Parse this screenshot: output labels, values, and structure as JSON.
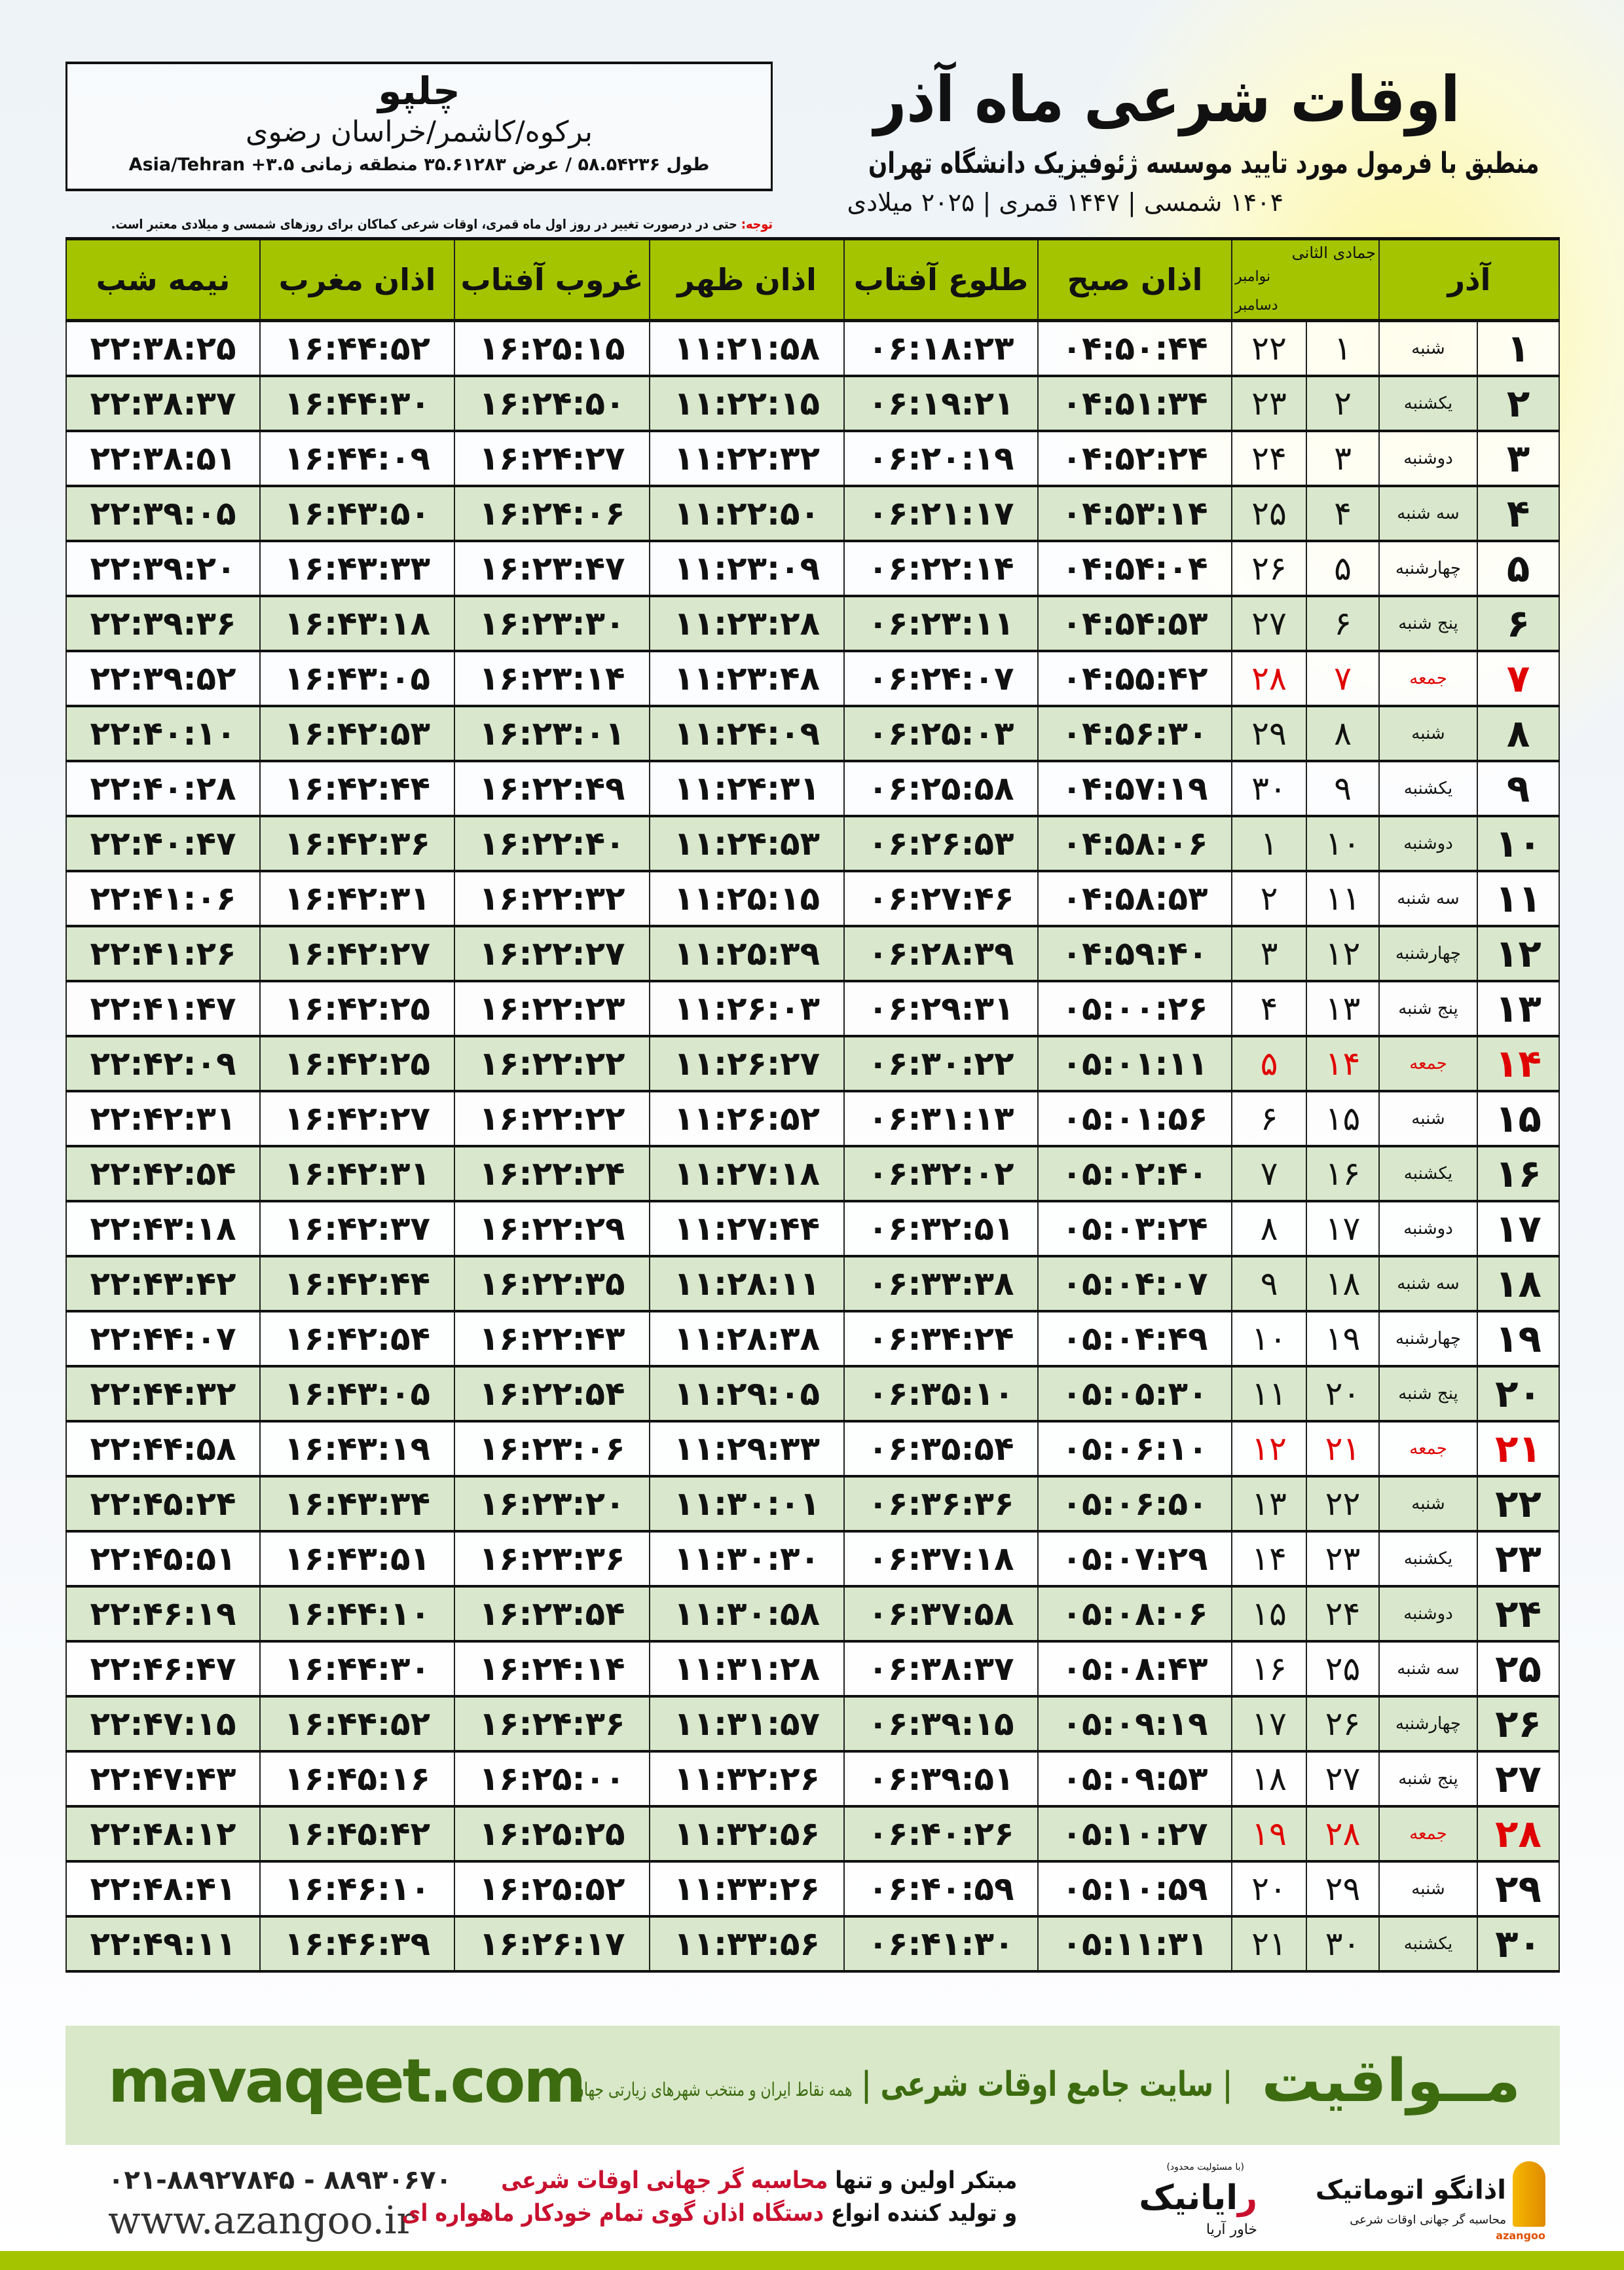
{
  "header": {
    "title": "اوقات شرعی ماه آذر",
    "subtitle": "منطبق با فرمول مورد تایید موسسه ژئوفیزیک دانشگاه تهران",
    "dates": "۱۴۰۴ شمسی | ۱۴۴۷ قمری | ۲۰۲۵ میلادی"
  },
  "location": {
    "city": "چلپو",
    "region": "برکوه/کاشمر/خراسان رضوی",
    "coords": "طول ۵۸.۵۴۲۳۶ / عرض ۳۵.۶۱۲۸۳ منطقه زمانی ۳.۵+ Asia/Tehran"
  },
  "note": {
    "label": "توجه:",
    "text": " حتی در درصورت تغییر در روز اول ماه قمری، اوقات شرعی کماکان برای روزهای شمسی و میلادی معتبر است."
  },
  "table": {
    "headers": {
      "month": "آذر",
      "hijri_month": "جمادی الثانی",
      "greg_month_1": "نوامبر",
      "greg_month_2": "دسامبر",
      "fajr": "اذان صبح",
      "sunrise": "طلوع آفتاب",
      "dhuhr": "اذان ظهر",
      "sunset": "غروب آفتاب",
      "maghrib": "اذان مغرب",
      "midnight": "نیمه شب"
    },
    "holiday_color": "#e00000",
    "header_color": "#a4c400",
    "alt_row_color": "#d9e8cc",
    "rows": [
      {
        "day": "۱",
        "weekday": "شنبه",
        "hijri": "۱",
        "greg": "۲۲",
        "times": [
          "۰۴:۵۰:۴۴",
          "۰۶:۱۸:۲۳",
          "۱۱:۲۱:۵۸",
          "۱۶:۲۵:۱۵",
          "۱۶:۴۴:۵۲",
          "۲۲:۳۸:۲۵"
        ],
        "holiday": false
      },
      {
        "day": "۲",
        "weekday": "یکشنبه",
        "hijri": "۲",
        "greg": "۲۳",
        "times": [
          "۰۴:۵۱:۳۴",
          "۰۶:۱۹:۲۱",
          "۱۱:۲۲:۱۵",
          "۱۶:۲۴:۵۰",
          "۱۶:۴۴:۳۰",
          "۲۲:۳۸:۳۷"
        ],
        "holiday": false
      },
      {
        "day": "۳",
        "weekday": "دوشنبه",
        "hijri": "۳",
        "greg": "۲۴",
        "times": [
          "۰۴:۵۲:۲۴",
          "۰۶:۲۰:۱۹",
          "۱۱:۲۲:۳۲",
          "۱۶:۲۴:۲۷",
          "۱۶:۴۴:۰۹",
          "۲۲:۳۸:۵۱"
        ],
        "holiday": false
      },
      {
        "day": "۴",
        "weekday": "سه شنبه",
        "hijri": "۴",
        "greg": "۲۵",
        "times": [
          "۰۴:۵۳:۱۴",
          "۰۶:۲۱:۱۷",
          "۱۱:۲۲:۵۰",
          "۱۶:۲۴:۰۶",
          "۱۶:۴۳:۵۰",
          "۲۲:۳۹:۰۵"
        ],
        "holiday": false
      },
      {
        "day": "۵",
        "weekday": "چهارشنبه",
        "hijri": "۵",
        "greg": "۲۶",
        "times": [
          "۰۴:۵۴:۰۴",
          "۰۶:۲۲:۱۴",
          "۱۱:۲۳:۰۹",
          "۱۶:۲۳:۴۷",
          "۱۶:۴۳:۳۳",
          "۲۲:۳۹:۲۰"
        ],
        "holiday": false
      },
      {
        "day": "۶",
        "weekday": "پنج شنبه",
        "hijri": "۶",
        "greg": "۲۷",
        "times": [
          "۰۴:۵۴:۵۳",
          "۰۶:۲۳:۱۱",
          "۱۱:۲۳:۲۸",
          "۱۶:۲۳:۳۰",
          "۱۶:۴۳:۱۸",
          "۲۲:۳۹:۳۶"
        ],
        "holiday": false
      },
      {
        "day": "۷",
        "weekday": "جمعه",
        "hijri": "۷",
        "greg": "۲۸",
        "times": [
          "۰۴:۵۵:۴۲",
          "۰۶:۲۴:۰۷",
          "۱۱:۲۳:۴۸",
          "۱۶:۲۳:۱۴",
          "۱۶:۴۳:۰۵",
          "۲۲:۳۹:۵۲"
        ],
        "holiday": true
      },
      {
        "day": "۸",
        "weekday": "شنبه",
        "hijri": "۸",
        "greg": "۲۹",
        "times": [
          "۰۴:۵۶:۳۰",
          "۰۶:۲۵:۰۳",
          "۱۱:۲۴:۰۹",
          "۱۶:۲۳:۰۱",
          "۱۶:۴۲:۵۳",
          "۲۲:۴۰:۱۰"
        ],
        "holiday": false
      },
      {
        "day": "۹",
        "weekday": "یکشنبه",
        "hijri": "۹",
        "greg": "۳۰",
        "times": [
          "۰۴:۵۷:۱۹",
          "۰۶:۲۵:۵۸",
          "۱۱:۲۴:۳۱",
          "۱۶:۲۲:۴۹",
          "۱۶:۴۲:۴۴",
          "۲۲:۴۰:۲۸"
        ],
        "holiday": false
      },
      {
        "day": "۱۰",
        "weekday": "دوشنبه",
        "hijri": "۱۰",
        "greg": "۱",
        "times": [
          "۰۴:۵۸:۰۶",
          "۰۶:۲۶:۵۳",
          "۱۱:۲۴:۵۳",
          "۱۶:۲۲:۴۰",
          "۱۶:۴۲:۳۶",
          "۲۲:۴۰:۴۷"
        ],
        "holiday": false
      },
      {
        "day": "۱۱",
        "weekday": "سه شنبه",
        "hijri": "۱۱",
        "greg": "۲",
        "times": [
          "۰۴:۵۸:۵۳",
          "۰۶:۲۷:۴۶",
          "۱۱:۲۵:۱۵",
          "۱۶:۲۲:۳۲",
          "۱۶:۴۲:۳۱",
          "۲۲:۴۱:۰۶"
        ],
        "holiday": false
      },
      {
        "day": "۱۲",
        "weekday": "چهارشنبه",
        "hijri": "۱۲",
        "greg": "۳",
        "times": [
          "۰۴:۵۹:۴۰",
          "۰۶:۲۸:۳۹",
          "۱۱:۲۵:۳۹",
          "۱۶:۲۲:۲۷",
          "۱۶:۴۲:۲۷",
          "۲۲:۴۱:۲۶"
        ],
        "holiday": false
      },
      {
        "day": "۱۳",
        "weekday": "پنج شنبه",
        "hijri": "۱۳",
        "greg": "۴",
        "times": [
          "۰۵:۰۰:۲۶",
          "۰۶:۲۹:۳۱",
          "۱۱:۲۶:۰۳",
          "۱۶:۲۲:۲۳",
          "۱۶:۴۲:۲۵",
          "۲۲:۴۱:۴۷"
        ],
        "holiday": false
      },
      {
        "day": "۱۴",
        "weekday": "جمعه",
        "hijri": "۱۴",
        "greg": "۵",
        "times": [
          "۰۵:۰۱:۱۱",
          "۰۶:۳۰:۲۲",
          "۱۱:۲۶:۲۷",
          "۱۶:۲۲:۲۲",
          "۱۶:۴۲:۲۵",
          "۲۲:۴۲:۰۹"
        ],
        "holiday": true
      },
      {
        "day": "۱۵",
        "weekday": "شنبه",
        "hijri": "۱۵",
        "greg": "۶",
        "times": [
          "۰۵:۰۱:۵۶",
          "۰۶:۳۱:۱۳",
          "۱۱:۲۶:۵۲",
          "۱۶:۲۲:۲۲",
          "۱۶:۴۲:۲۷",
          "۲۲:۴۲:۳۱"
        ],
        "holiday": false
      },
      {
        "day": "۱۶",
        "weekday": "یکشنبه",
        "hijri": "۱۶",
        "greg": "۷",
        "times": [
          "۰۵:۰۲:۴۰",
          "۰۶:۳۲:۰۲",
          "۱۱:۲۷:۱۸",
          "۱۶:۲۲:۲۴",
          "۱۶:۴۲:۳۱",
          "۲۲:۴۲:۵۴"
        ],
        "holiday": false
      },
      {
        "day": "۱۷",
        "weekday": "دوشنبه",
        "hijri": "۱۷",
        "greg": "۸",
        "times": [
          "۰۵:۰۳:۲۴",
          "۰۶:۳۲:۵۱",
          "۱۱:۲۷:۴۴",
          "۱۶:۲۲:۲۹",
          "۱۶:۴۲:۳۷",
          "۲۲:۴۳:۱۸"
        ],
        "holiday": false
      },
      {
        "day": "۱۸",
        "weekday": "سه شنبه",
        "hijri": "۱۸",
        "greg": "۹",
        "times": [
          "۰۵:۰۴:۰۷",
          "۰۶:۳۳:۳۸",
          "۱۱:۲۸:۱۱",
          "۱۶:۲۲:۳۵",
          "۱۶:۴۲:۴۴",
          "۲۲:۴۳:۴۲"
        ],
        "holiday": false
      },
      {
        "day": "۱۹",
        "weekday": "چهارشنبه",
        "hijri": "۱۹",
        "greg": "۱۰",
        "times": [
          "۰۵:۰۴:۴۹",
          "۰۶:۳۴:۲۴",
          "۱۱:۲۸:۳۸",
          "۱۶:۲۲:۴۳",
          "۱۶:۴۲:۵۴",
          "۲۲:۴۴:۰۷"
        ],
        "holiday": false
      },
      {
        "day": "۲۰",
        "weekday": "پنج شنبه",
        "hijri": "۲۰",
        "greg": "۱۱",
        "times": [
          "۰۵:۰۵:۳۰",
          "۰۶:۳۵:۱۰",
          "۱۱:۲۹:۰۵",
          "۱۶:۲۲:۵۴",
          "۱۶:۴۳:۰۵",
          "۲۲:۴۴:۳۲"
        ],
        "holiday": false
      },
      {
        "day": "۲۱",
        "weekday": "جمعه",
        "hijri": "۲۱",
        "greg": "۱۲",
        "times": [
          "۰۵:۰۶:۱۰",
          "۰۶:۳۵:۵۴",
          "۱۱:۲۹:۳۳",
          "۱۶:۲۳:۰۶",
          "۱۶:۴۳:۱۹",
          "۲۲:۴۴:۵۸"
        ],
        "holiday": true
      },
      {
        "day": "۲۲",
        "weekday": "شنبه",
        "hijri": "۲۲",
        "greg": "۱۳",
        "times": [
          "۰۵:۰۶:۵۰",
          "۰۶:۳۶:۳۶",
          "۱۱:۳۰:۰۱",
          "۱۶:۲۳:۲۰",
          "۱۶:۴۳:۳۴",
          "۲۲:۴۵:۲۴"
        ],
        "holiday": false
      },
      {
        "day": "۲۳",
        "weekday": "یکشنبه",
        "hijri": "۲۳",
        "greg": "۱۴",
        "times": [
          "۰۵:۰۷:۲۹",
          "۰۶:۳۷:۱۸",
          "۱۱:۳۰:۳۰",
          "۱۶:۲۳:۳۶",
          "۱۶:۴۳:۵۱",
          "۲۲:۴۵:۵۱"
        ],
        "holiday": false
      },
      {
        "day": "۲۴",
        "weekday": "دوشنبه",
        "hijri": "۲۴",
        "greg": "۱۵",
        "times": [
          "۰۵:۰۸:۰۶",
          "۰۶:۳۷:۵۸",
          "۱۱:۳۰:۵۸",
          "۱۶:۲۳:۵۴",
          "۱۶:۴۴:۱۰",
          "۲۲:۴۶:۱۹"
        ],
        "holiday": false
      },
      {
        "day": "۲۵",
        "weekday": "سه شنبه",
        "hijri": "۲۵",
        "greg": "۱۶",
        "times": [
          "۰۵:۰۸:۴۳",
          "۰۶:۳۸:۳۷",
          "۱۱:۳۱:۲۸",
          "۱۶:۲۴:۱۴",
          "۱۶:۴۴:۳۰",
          "۲۲:۴۶:۴۷"
        ],
        "holiday": false
      },
      {
        "day": "۲۶",
        "weekday": "چهارشنبه",
        "hijri": "۲۶",
        "greg": "۱۷",
        "times": [
          "۰۵:۰۹:۱۹",
          "۰۶:۳۹:۱۵",
          "۱۱:۳۱:۵۷",
          "۱۶:۲۴:۳۶",
          "۱۶:۴۴:۵۲",
          "۲۲:۴۷:۱۵"
        ],
        "holiday": false
      },
      {
        "day": "۲۷",
        "weekday": "پنج شنبه",
        "hijri": "۲۷",
        "greg": "۱۸",
        "times": [
          "۰۵:۰۹:۵۳",
          "۰۶:۳۹:۵۱",
          "۱۱:۳۲:۲۶",
          "۱۶:۲۵:۰۰",
          "۱۶:۴۵:۱۶",
          "۲۲:۴۷:۴۳"
        ],
        "holiday": false
      },
      {
        "day": "۲۸",
        "weekday": "جمعه",
        "hijri": "۲۸",
        "greg": "۱۹",
        "times": [
          "۰۵:۱۰:۲۷",
          "۰۶:۴۰:۲۶",
          "۱۱:۳۲:۵۶",
          "۱۶:۲۵:۲۵",
          "۱۶:۴۵:۴۲",
          "۲۲:۴۸:۱۲"
        ],
        "holiday": true
      },
      {
        "day": "۲۹",
        "weekday": "شنبه",
        "hijri": "۲۹",
        "greg": "۲۰",
        "times": [
          "۰۵:۱۰:۵۹",
          "۰۶:۴۰:۵۹",
          "۱۱:۳۳:۲۶",
          "۱۶:۲۵:۵۲",
          "۱۶:۴۶:۱۰",
          "۲۲:۴۸:۴۱"
        ],
        "holiday": false
      },
      {
        "day": "۳۰",
        "weekday": "یکشنبه",
        "hijri": "۳۰",
        "greg": "۲۱",
        "times": [
          "۰۵:۱۱:۳۱",
          "۰۶:۴۱:۳۰",
          "۱۱:۳۳:۵۶",
          "۱۶:۲۶:۱۷",
          "۱۶:۴۶:۳۹",
          "۲۲:۴۹:۱۱"
        ],
        "holiday": false
      }
    ]
  },
  "footer": {
    "mavaqeet_logo": "مــواقیت",
    "tagline": "| سایت جامع اوقات شرعی |",
    "tagline_small": "همه نقاط ایران و منتخب شهرهای زیارتی جهان",
    "site": "mavaqeet.com",
    "phone": "۰۲۱-۸۸۹۲۷۸۴۵ - ۸۸۹۳۰۶۷۰",
    "web": "www.azangoo.ir",
    "promo_1a": "مبتکر اولین و تنها ",
    "promo_1b": "محاسبه گر جهانی اوقات شرعی",
    "promo_2a": "و تولید کننده انواع ",
    "promo_2b": "دستگاه اذان گوی تمام خودکار ماهواره ای",
    "rayanik_r": "ر",
    "rayanik": "ایانیک",
    "rayanik_small": "خاور آریا",
    "rayanik_caption": "(با مسئولیت محدود)",
    "azangoo_name": "اذانگو اتوماتیک",
    "azangoo_sub": "محاسبه گر جهانی اوقات شرعی",
    "azangoo_en": "azangoo",
    "brand_green": "#3d6b10",
    "accent_red": "#c8102e"
  }
}
